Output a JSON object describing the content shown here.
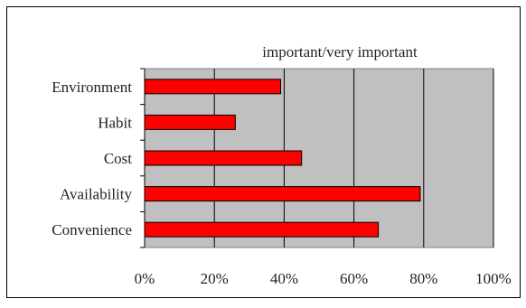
{
  "chart_data": {
    "type": "bar",
    "orientation": "horizontal",
    "title": "important/very important",
    "categories": [
      "Environment",
      "Habit",
      "Cost",
      "Availability",
      "Convenience"
    ],
    "values": [
      39,
      26,
      45,
      79,
      67
    ],
    "xlim": [
      0,
      100
    ],
    "x_ticks": [
      "0%",
      "20%",
      "40%",
      "60%",
      "80%",
      "100%"
    ],
    "x_tick_values": [
      0,
      20,
      40,
      60,
      80,
      100
    ],
    "grid": true,
    "legend": "none",
    "colors": {
      "bar_fill": "#ff0000",
      "bar_stroke": "#000000",
      "plot_background": "#c0c0c0",
      "gridline": "#000000"
    }
  }
}
